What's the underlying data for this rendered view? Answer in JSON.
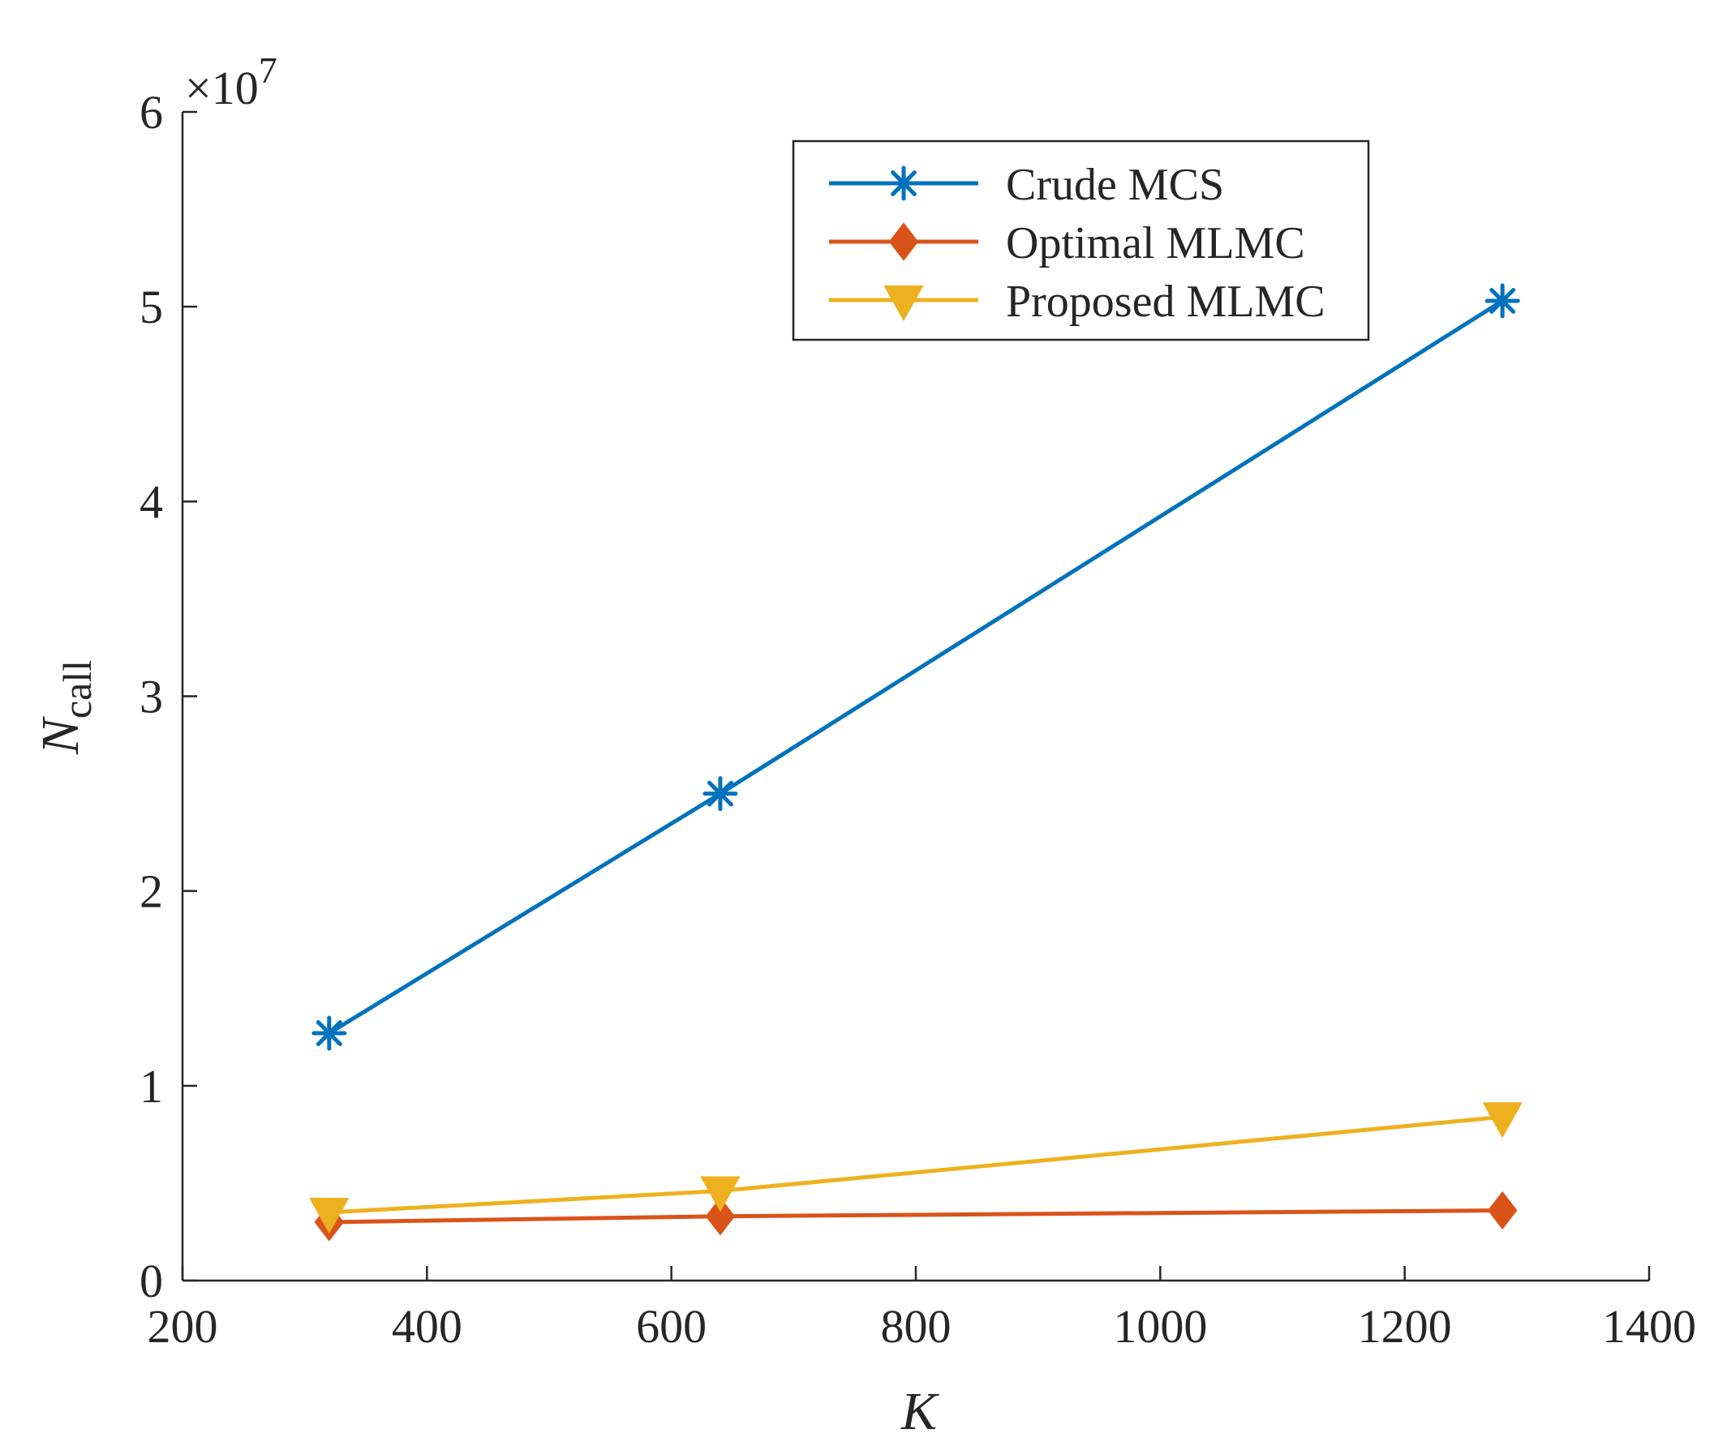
{
  "chart_data": {
    "type": "line",
    "title": "",
    "xlabel": "K",
    "ylabel_main": "N",
    "ylabel_sub": "call",
    "y_exponent_prefix": "×10",
    "y_exponent_power": "7",
    "xlim": [
      200,
      1400
    ],
    "ylim": [
      0,
      6
    ],
    "x_ticks": [
      200,
      400,
      600,
      800,
      1000,
      1200,
      1400
    ],
    "y_ticks": [
      0,
      1,
      2,
      3,
      4,
      5,
      6
    ],
    "grid": false,
    "legend_position": "top-right",
    "x": [
      320,
      640,
      1280
    ],
    "series": [
      {
        "name": "Crude MCS",
        "marker": "asterisk",
        "color": "#0072BD",
        "values": [
          1.27,
          2.5,
          5.03
        ]
      },
      {
        "name": "Optimal MLMC",
        "marker": "diamond",
        "color": "#D95319",
        "values": [
          0.3,
          0.33,
          0.36
        ]
      },
      {
        "name": "Proposed MLMC",
        "marker": "triangle-down",
        "color": "#EDB120",
        "values": [
          0.35,
          0.46,
          0.84
        ]
      }
    ]
  }
}
